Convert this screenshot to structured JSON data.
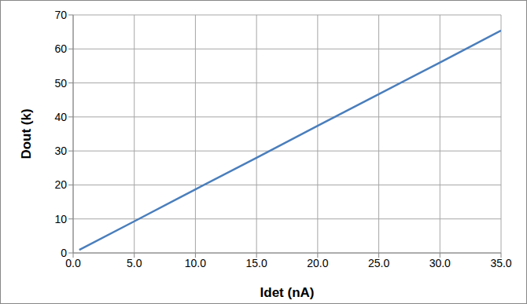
{
  "chart_data": {
    "type": "line",
    "x_label": "Idet (nA)",
    "y_label": "Dout (k)",
    "x": [
      0.5,
      5,
      10,
      15,
      20,
      25,
      30,
      35
    ],
    "series": [
      {
        "name": "Dout",
        "color": "#4a7ebb",
        "values": [
          0.9,
          9.3,
          18.7,
          28.0,
          37.4,
          46.7,
          56.0,
          65.4
        ]
      }
    ],
    "xlim": [
      0,
      35
    ],
    "xticks": [
      {
        "value": 0,
        "label": "0.0"
      },
      {
        "value": 5,
        "label": "5.0"
      },
      {
        "value": 10,
        "label": "10.0"
      },
      {
        "value": 15,
        "label": "15.0"
      },
      {
        "value": 20,
        "label": "20.0"
      },
      {
        "value": 25,
        "label": "25.0"
      },
      {
        "value": 30,
        "label": "30.0"
      },
      {
        "value": 35,
        "label": "35.0"
      }
    ],
    "ylim": [
      0,
      70
    ],
    "yticks": [
      0,
      10,
      20,
      30,
      40,
      50,
      60,
      70
    ],
    "grid": true
  }
}
